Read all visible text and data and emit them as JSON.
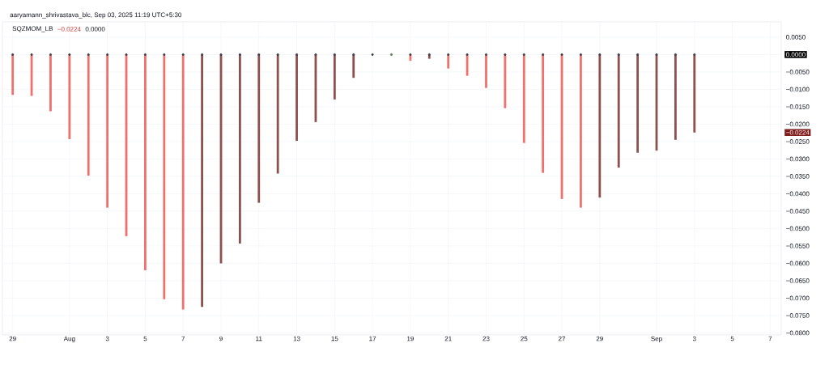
{
  "chart_data": {
    "type": "bar",
    "title": "SQZMOM_LB",
    "x": [
      "2025-07-29",
      "2025-07-30",
      "2025-07-31",
      "2025-08-01",
      "2025-08-02",
      "2025-08-03",
      "2025-08-04",
      "2025-08-05",
      "2025-08-06",
      "2025-08-07",
      "2025-08-08",
      "2025-08-09",
      "2025-08-10",
      "2025-08-11",
      "2025-08-12",
      "2025-08-13",
      "2025-08-14",
      "2025-08-15",
      "2025-08-16",
      "2025-08-17",
      "2025-08-18",
      "2025-08-19",
      "2025-08-20",
      "2025-08-21",
      "2025-08-22",
      "2025-08-23",
      "2025-08-24",
      "2025-08-25",
      "2025-08-26",
      "2025-08-27",
      "2025-08-28",
      "2025-08-29",
      "2025-08-30",
      "2025-08-31",
      "2025-09-01",
      "2025-09-02",
      "2025-09-03"
    ],
    "series": [
      {
        "values": [
          -0.0116,
          -0.0119,
          -0.0163,
          -0.0243,
          -0.0348,
          -0.044,
          -0.0522,
          -0.062,
          -0.0703,
          -0.0733,
          -0.0725,
          -0.06,
          -0.0543,
          -0.0426,
          -0.0342,
          -0.0248,
          -0.0194,
          -0.0129,
          -0.0067,
          null,
          null,
          -0.0018,
          -0.0012,
          -0.004,
          -0.0061,
          -0.0096,
          -0.0154,
          -0.0254,
          -0.034,
          -0.0415,
          -0.044,
          -0.0411,
          -0.0325,
          -0.0282,
          -0.0276,
          -0.0245,
          -0.0224
        ],
        "colors": [
          "#f0706c",
          "#f0706c",
          "#f0706c",
          "#f0706c",
          "#f0706c",
          "#f0706c",
          "#f0706c",
          "#f0706c",
          "#f0706c",
          "#f0706c",
          "#8e4f4f",
          "#8e4f4f",
          "#8e4f4f",
          "#8e4f4f",
          "#8e4f4f",
          "#8e4f4f",
          "#8e4f4f",
          "#8e4f4f",
          "#8e4f4f",
          "#8e4f4f",
          "#8e4f4f",
          "#f0706c",
          "#8e4f4f",
          "#f0706c",
          "#f0706c",
          "#f0706c",
          "#f0706c",
          "#f0706c",
          "#f0706c",
          "#f0706c",
          "#f0706c",
          "#8e4f4f",
          "#8e4f4f",
          "#8e4f4f",
          "#8e4f4f",
          "#8e4f4f",
          "#8e4f4f"
        ]
      },
      {
        "type": "scatter",
        "marker": "circle",
        "values": [
          0,
          0,
          0,
          0,
          0,
          0,
          0,
          0,
          0,
          0,
          0,
          0,
          0,
          0,
          0,
          0,
          0,
          0,
          0,
          0,
          0,
          0,
          0,
          0,
          0,
          0,
          0,
          0,
          0,
          0,
          0,
          0,
          0,
          0,
          0,
          0,
          0
        ],
        "colors": [
          "#363a45",
          "#363a45",
          "#363a45",
          "#363a45",
          "#363a45",
          "#363a45",
          "#363a45",
          "#363a45",
          "#363a45",
          "#363a45",
          "#363a45",
          "#363a45",
          "#363a45",
          "#363a45",
          "#363a45",
          "#363a45",
          "#363a45",
          "#363a45",
          "#363a45",
          "#363a45",
          "#4f6f52",
          "#363a45",
          "#363a45",
          "#363a45",
          "#363a45",
          "#363a45",
          "#363a45",
          "#363a45",
          "#363a45",
          "#363a45",
          "#363a45",
          "#363a45",
          "#363a45",
          "#363a45",
          "#363a45",
          "#363a45",
          "#363a45"
        ]
      }
    ],
    "xlim": [
      "2025-07-28T11:00",
      "2025-09-07T14:00"
    ],
    "xticks": [
      {
        "value": "2025-07-29",
        "label": "29"
      },
      {
        "value": "2025-08-01",
        "label": "Aug"
      },
      {
        "value": "2025-08-03",
        "label": "3"
      },
      {
        "value": "2025-08-05",
        "label": "5"
      },
      {
        "value": "2025-08-07",
        "label": "7"
      },
      {
        "value": "2025-08-09",
        "label": "9"
      },
      {
        "value": "2025-08-11",
        "label": "11"
      },
      {
        "value": "2025-08-13",
        "label": "13"
      },
      {
        "value": "2025-08-15",
        "label": "15"
      },
      {
        "value": "2025-08-17",
        "label": "17"
      },
      {
        "value": "2025-08-19",
        "label": "19"
      },
      {
        "value": "2025-08-21",
        "label": "21"
      },
      {
        "value": "2025-08-23",
        "label": "23"
      },
      {
        "value": "2025-08-25",
        "label": "25"
      },
      {
        "value": "2025-08-27",
        "label": "27"
      },
      {
        "value": "2025-08-29",
        "label": "29"
      },
      {
        "value": "2025-09-01",
        "label": "Sep"
      },
      {
        "value": "2025-09-03",
        "label": "3"
      },
      {
        "value": "2025-09-05",
        "label": "5"
      },
      {
        "value": "2025-09-07",
        "label": "7"
      }
    ],
    "ylim": [
      -0.0806,
      0.0094
    ],
    "yticks": [
      {
        "value": 0.005,
        "label": "0.0050"
      },
      {
        "value": 0,
        "label": null
      },
      {
        "value": -0.005,
        "label": "−0.0050"
      },
      {
        "value": -0.01,
        "label": "−0.0100"
      },
      {
        "value": -0.015,
        "label": "−0.0150"
      },
      {
        "value": -0.02,
        "label": "−0.0200"
      },
      {
        "value": -0.025,
        "label": "−0.0250"
      },
      {
        "value": -0.03,
        "label": "−0.0300"
      },
      {
        "value": -0.035,
        "label": "−0.0350"
      },
      {
        "value": -0.04,
        "label": "−0.0400"
      },
      {
        "value": -0.045,
        "label": "−0.0450"
      },
      {
        "value": -0.05,
        "label": "−0.0500"
      },
      {
        "value": -0.055,
        "label": "−0.0550"
      },
      {
        "value": -0.06,
        "label": "−0.0600"
      },
      {
        "value": -0.065,
        "label": "−0.0650"
      },
      {
        "value": -0.07,
        "label": "−0.0700"
      },
      {
        "value": -0.075,
        "label": "−0.0750"
      },
      {
        "value": -0.08,
        "label": "−0.0800"
      }
    ],
    "grid": true,
    "annotations": [
      "aaryamann_shrivastava_blc, Sep 03, 2025 11:19 UTC+5:30",
      "−0.0224",
      "0.0000",
      "−0.0224",
      "0.0000"
    ]
  }
}
